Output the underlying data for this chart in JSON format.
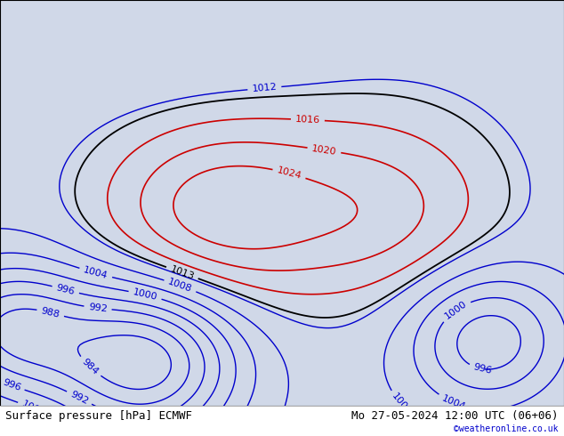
{
  "title_left": "Surface pressure [hPa] ECMWF",
  "title_right": "Mo 27-05-2024 12:00 UTC (06+06)",
  "copyright": "©weatheronline.co.uk",
  "background_color": "#d0d8e8",
  "land_color": "#c8f0a0",
  "ocean_color": "#d0d8e8",
  "border_color": "#555555",
  "text_color_black": "#000000",
  "text_color_blue": "#0000cc",
  "text_color_red": "#cc0000",
  "font_size_labels": 8,
  "font_size_title": 9,
  "figsize": [
    6.34,
    4.9
  ],
  "dpi": 100
}
